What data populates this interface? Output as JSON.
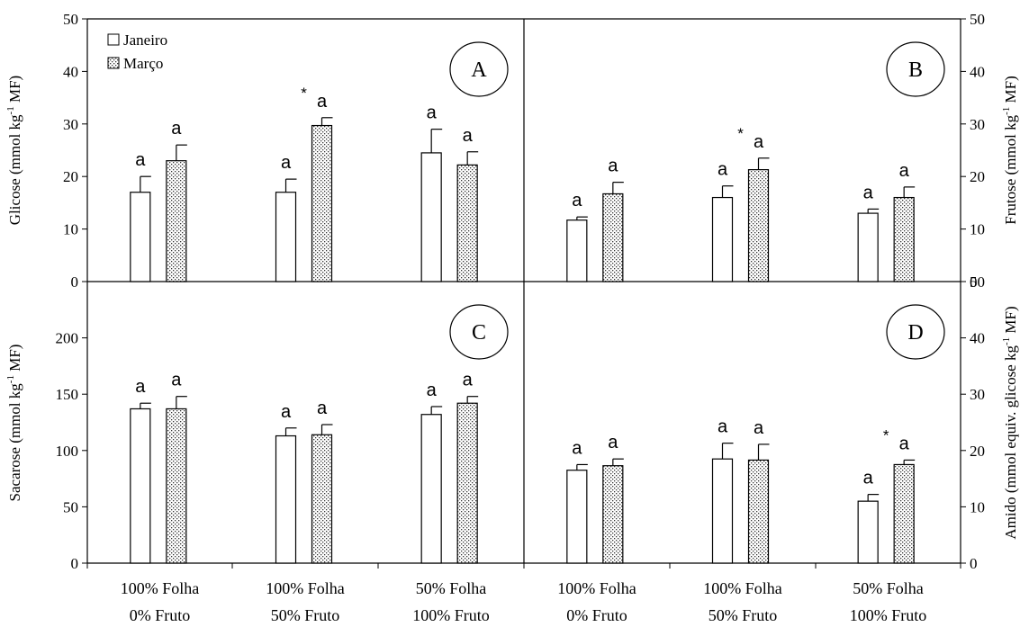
{
  "chart_data": [
    {
      "panel": "A",
      "type": "bar",
      "ylabel": "Glicose (mmol kg-1 MF)",
      "y_axis": "left",
      "ylim": [
        0,
        50
      ],
      "yticks": [
        0,
        10,
        20,
        30,
        40,
        50
      ],
      "categories": [
        "100% Folha 0% Fruto",
        "100% Folha 50% Fruto",
        "50% Folha 100% Fruto"
      ],
      "series": [
        {
          "name": "Janeiro",
          "values": [
            17,
            17,
            24.5
          ],
          "errors": [
            3,
            2.5,
            4.5
          ]
        },
        {
          "name": "Março",
          "values": [
            23,
            29.7,
            22.2
          ],
          "errors": [
            3,
            1.5,
            2.5
          ]
        }
      ],
      "labels": [
        [
          "a",
          "a"
        ],
        [
          "a",
          "a"
        ],
        [
          "a",
          "a"
        ]
      ],
      "stars": [
        false,
        true,
        false
      ]
    },
    {
      "panel": "B",
      "type": "bar",
      "ylabel": "Frutose (mmol kg-1 MF)",
      "y_axis": "right",
      "ylim": [
        0,
        50
      ],
      "yticks": [
        0,
        10,
        20,
        30,
        40,
        50
      ],
      "categories": [
        "100% Folha 0% Fruto",
        "100% Folha 50% Fruto",
        "50% Folha 100% Fruto"
      ],
      "series": [
        {
          "name": "Janeiro",
          "values": [
            11.7,
            16,
            13
          ],
          "errors": [
            0.6,
            2.2,
            0.8
          ]
        },
        {
          "name": "Março",
          "values": [
            16.7,
            21.3,
            16
          ],
          "errors": [
            2.2,
            2.2,
            2
          ]
        }
      ],
      "labels": [
        [
          "a",
          "a"
        ],
        [
          "a",
          "a"
        ],
        [
          "a",
          "a"
        ]
      ],
      "stars": [
        false,
        true,
        false
      ]
    },
    {
      "panel": "C",
      "type": "bar",
      "ylabel": "Sacarose (mmol kg-1 MF)",
      "y_axis": "left",
      "ylim": [
        0,
        250
      ],
      "yticks": [
        0,
        50,
        100,
        150,
        200
      ],
      "categories": [
        "100% Folha 0% Fruto",
        "100% Folha 50% Fruto",
        "50% Folha 100% Fruto"
      ],
      "series": [
        {
          "name": "Janeiro",
          "values": [
            137,
            113,
            132
          ],
          "errors": [
            5,
            7,
            7
          ]
        },
        {
          "name": "Março",
          "values": [
            137,
            114,
            142
          ],
          "errors": [
            11,
            9,
            6
          ]
        }
      ],
      "labels": [
        [
          "a",
          "a"
        ],
        [
          "a",
          "a"
        ],
        [
          "a",
          "a"
        ]
      ],
      "stars": [
        false,
        false,
        false
      ]
    },
    {
      "panel": "D",
      "type": "bar",
      "ylabel": "Amido (mmol equiv. glicose kg-1 MF)",
      "y_axis": "right",
      "ylim": [
        0,
        50
      ],
      "yticks": [
        0,
        10,
        20,
        30,
        40,
        50
      ],
      "categories": [
        "100% Folha 0% Fruto",
        "100% Folha 50% Fruto",
        "50% Folha 100% Fruto"
      ],
      "series": [
        {
          "name": "Janeiro",
          "values": [
            16.5,
            18.5,
            11
          ],
          "errors": [
            1,
            2.8,
            1.2
          ]
        },
        {
          "name": "Março",
          "values": [
            17.3,
            18.3,
            17.5
          ],
          "errors": [
            1.2,
            2.8,
            0.8
          ]
        }
      ],
      "labels": [
        [
          "a",
          "a"
        ],
        [
          "a",
          "a"
        ],
        [
          "a",
          "a"
        ]
      ],
      "stars": [
        false,
        false,
        true
      ]
    }
  ],
  "legend": {
    "items": [
      {
        "label": "Janeiro",
        "pattern": "plain"
      },
      {
        "label": "Março",
        "pattern": "dotted"
      }
    ],
    "placement": "top-left of panel A"
  },
  "x_categories": [
    {
      "line1": "100% Folha",
      "line2": "0% Fruto"
    },
    {
      "line1": "100% Folha",
      "line2": "50% Fruto"
    },
    {
      "line1": "50% Folha",
      "line2": "100% Fruto"
    },
    {
      "line1": "100% Folha",
      "line2": "0% Fruto"
    },
    {
      "line1": "100% Folha",
      "line2": "50% Fruto"
    },
    {
      "line1": "50% Folha",
      "line2": "100% Fruto"
    }
  ],
  "y_labels": {
    "left_top": {
      "main": "Glicose (mmol kg",
      "sup": "-1",
      "end": " MF)"
    },
    "right_top": {
      "main": "Frutose (mmol kg",
      "sup": "-1",
      "end": " MF)"
    },
    "left_bottom": {
      "main": "Sacarose (mmol kg",
      "sup": "-1",
      "end": " MF)"
    },
    "right_bottom": {
      "main": "Amido (mmol equiv. glicose kg",
      "sup": "-1",
      "end": " MF)"
    }
  },
  "significance_mark": "*",
  "bar_letter": "a"
}
